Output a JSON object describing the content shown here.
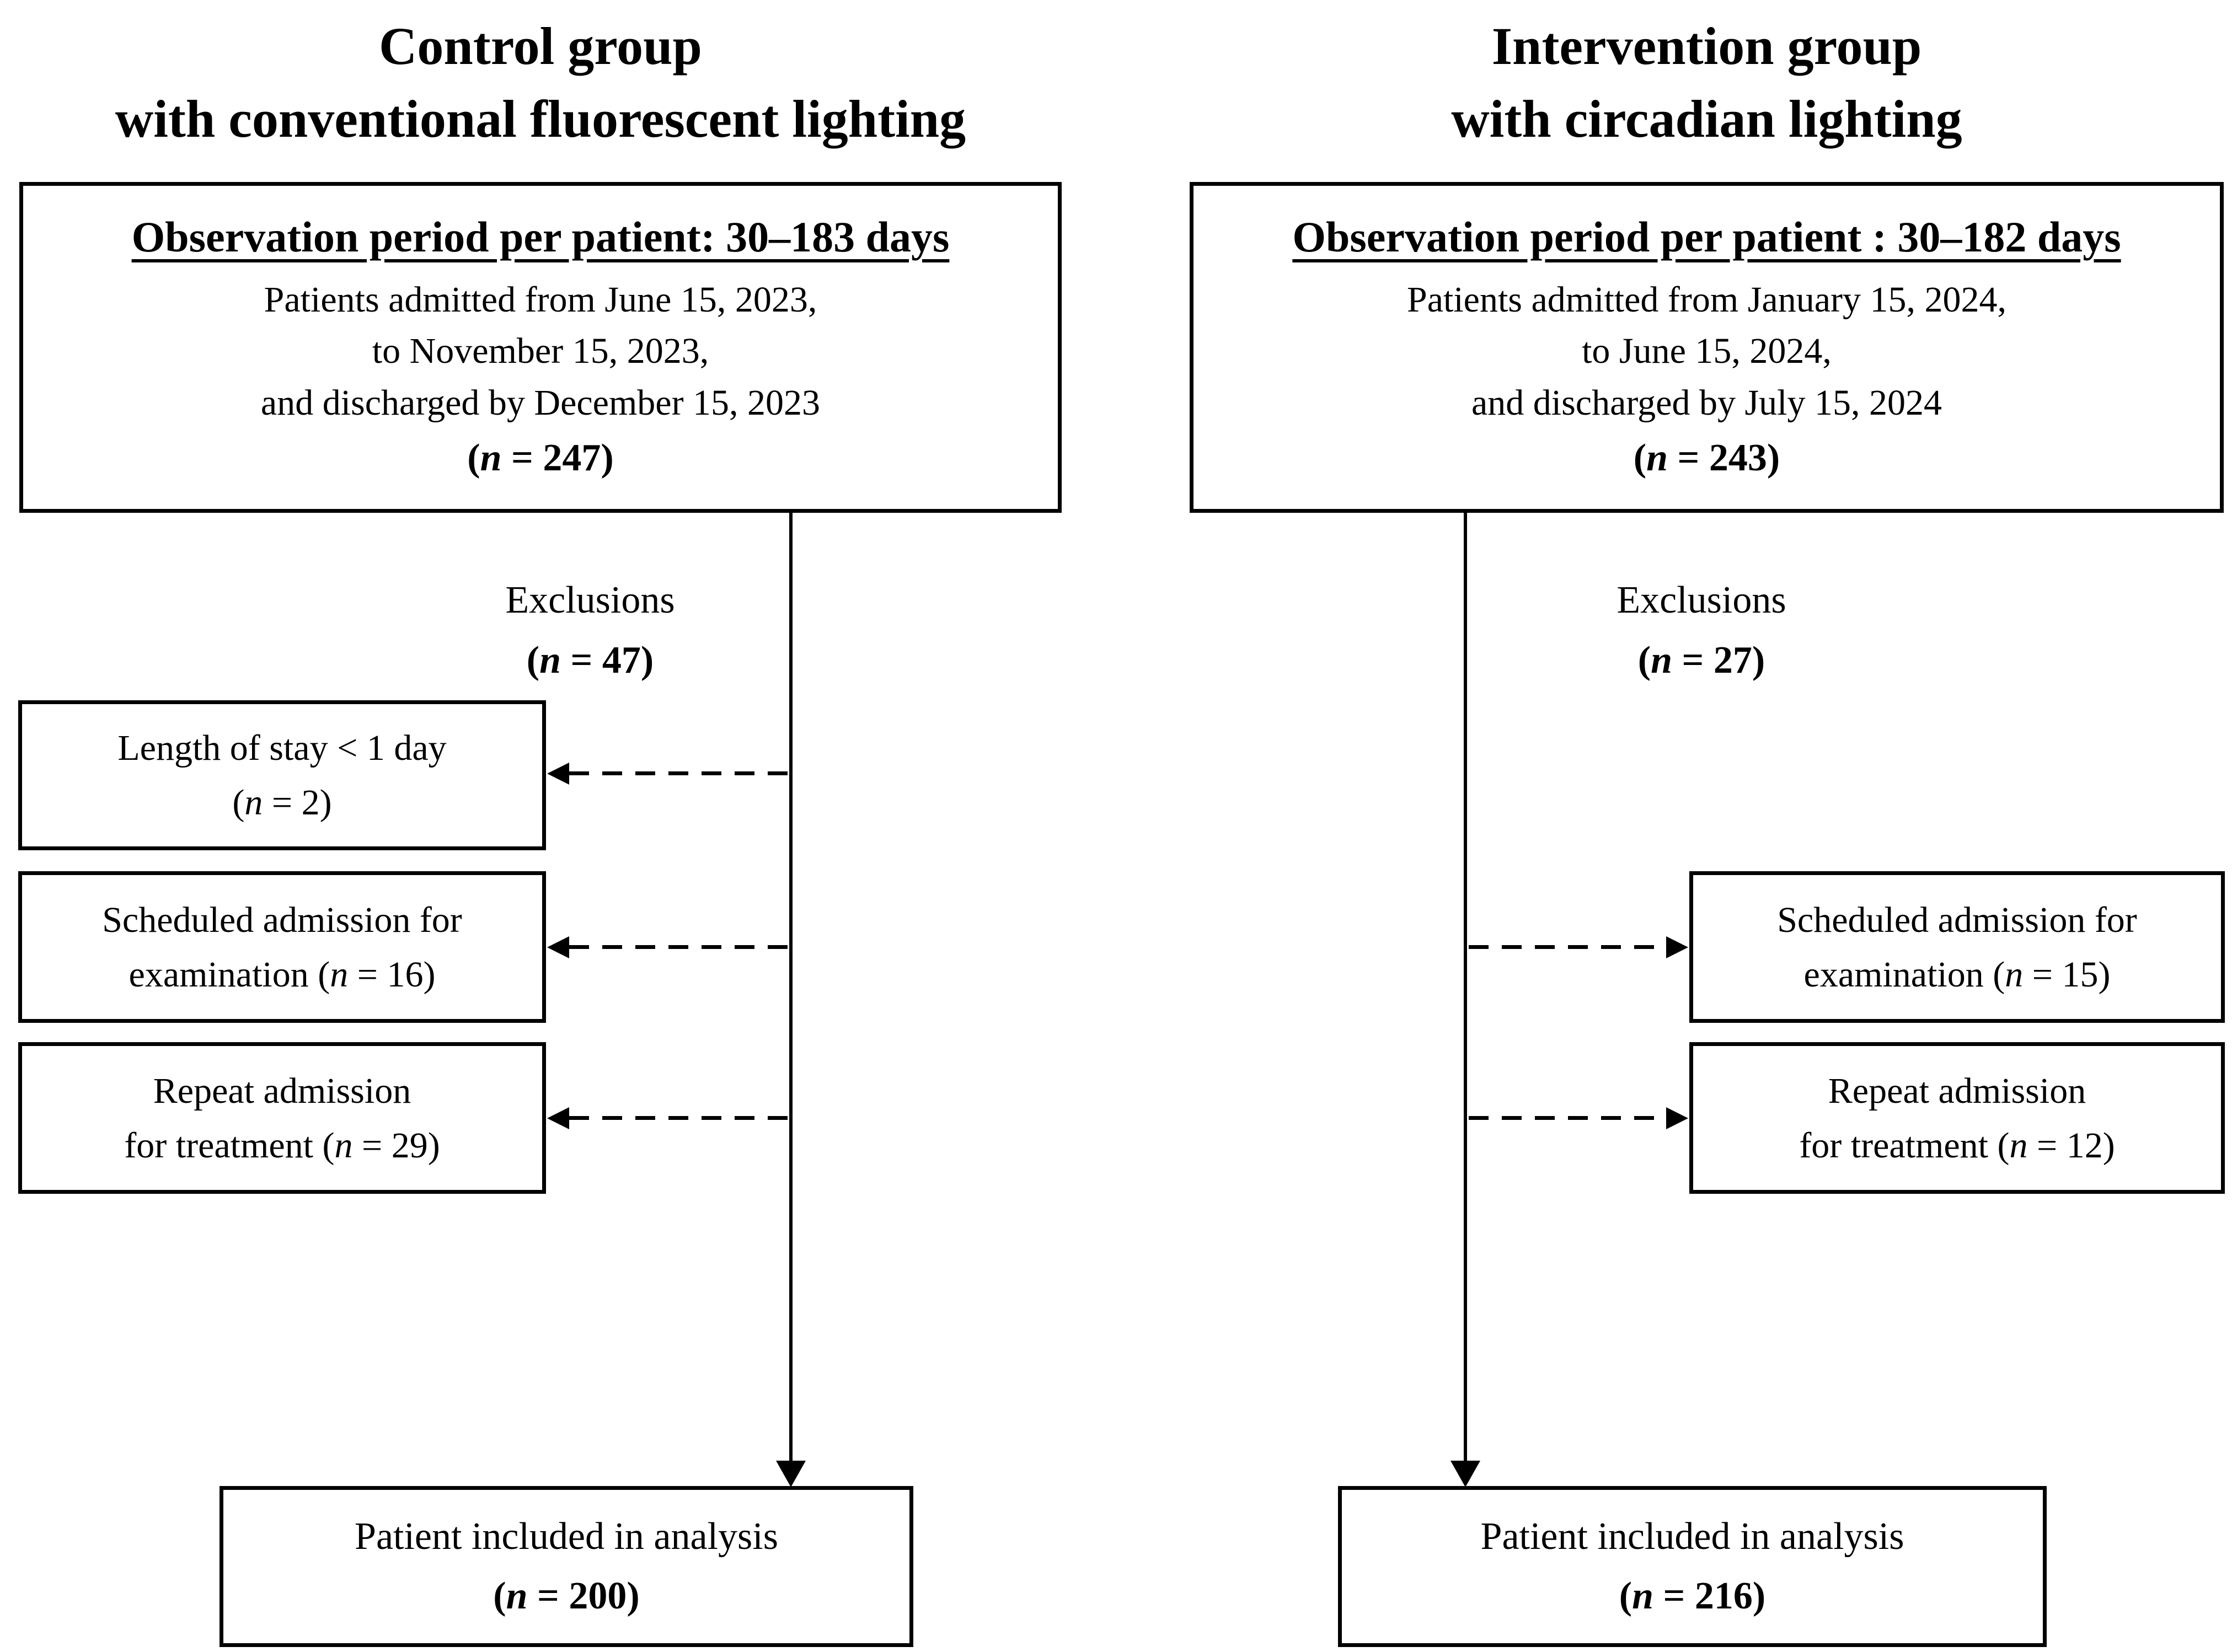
{
  "figure": {
    "colors": {
      "line": "#000000",
      "background": "#ffffff",
      "text": "#000000"
    },
    "columns": [
      {
        "title": [
          "Control group",
          "with conventional fluorescent lighting"
        ],
        "main_box": {
          "header": "Observation period per patient: 30–183 days",
          "line1": "Patients admitted from June 15, 2023,",
          "line2": "to November 15, 2023,",
          "line3": "and discharged by December 15, 2023",
          "n": "(n = 247)"
        },
        "exclusions": {
          "label": "Exclusions",
          "n": "(n = 47)"
        },
        "exclusion_boxes": [
          {
            "line1": "Length of stay < 1 day",
            "line2": "(n = 2)"
          },
          {
            "line1": "Scheduled admission for",
            "line2": "examination (n = 16)"
          },
          {
            "line1": "Repeat admission",
            "line2": "for treatment  (n = 29)"
          }
        ],
        "result_box": {
          "line1": "Patient included in analysis",
          "n": "(n = 200)"
        }
      },
      {
        "title": [
          "Intervention group",
          "with circadian lighting"
        ],
        "main_box": {
          "header": "Observation period per patient : 30–182 days",
          "line1": "Patients admitted from January 15, 2024,",
          "line2": "to June 15, 2024,",
          "line3": "and discharged by July 15, 2024",
          "n": "(n = 243)"
        },
        "exclusions": {
          "label": "Exclusions",
          "n": "(n = 27)"
        },
        "exclusion_boxes": [
          {
            "line1": "Scheduled admission for",
            "line2": "examination (n = 15)"
          },
          {
            "line1": "Repeat admission",
            "line2": "for treatment (n = 12)"
          }
        ],
        "result_box": {
          "line1": "Patient included in analysis",
          "n": "(n = 216)"
        }
      }
    ]
  }
}
